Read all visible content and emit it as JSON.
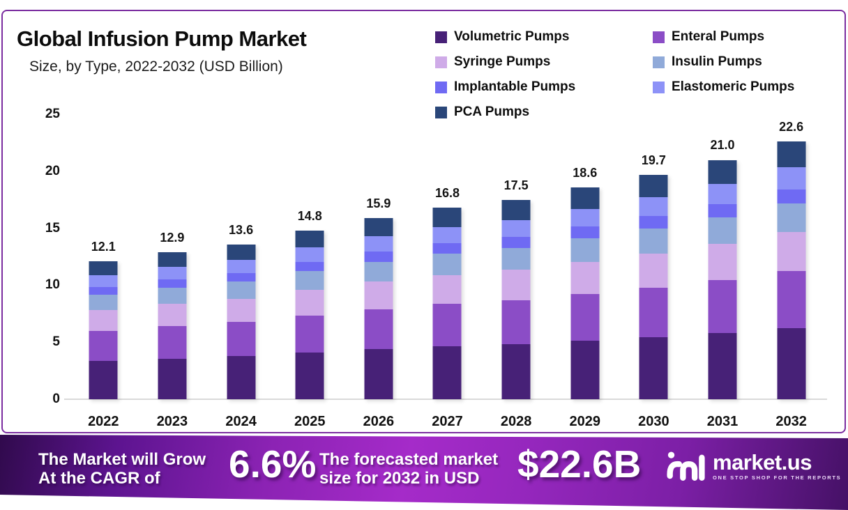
{
  "title": "Global Infusion Pump Market",
  "subtitle": "Size, by Type, 2022-2032 (USD Billion)",
  "legend": [
    {
      "label": "Volumetric Pumps",
      "color": "#472177"
    },
    {
      "label": "Enteral Pumps",
      "color": "#8b4dc6"
    },
    {
      "label": "Syringe Pumps",
      "color": "#cfabe8"
    },
    {
      "label": "Insulin Pumps",
      "color": "#90aad9"
    },
    {
      "label": "Implantable Pumps",
      "color": "#6f6af3"
    },
    {
      "label": "Elastomeric Pumps",
      "color": "#8d92f7"
    },
    {
      "label": "PCA Pumps",
      "color": "#2a4679"
    }
  ],
  "chart_data": {
    "type": "bar",
    "stacked": true,
    "title": "Global Infusion Pump Market Size, by Type, 2022-2032 (USD Billion)",
    "xlabel": "",
    "ylabel": "USD Billion",
    "ylim": [
      0,
      25
    ],
    "yticks": [
      0,
      5,
      10,
      15,
      20,
      25
    ],
    "grid": false,
    "legend_position": "top-right",
    "categories": [
      "2022",
      "2023",
      "2024",
      "2025",
      "2026",
      "2027",
      "2028",
      "2029",
      "2030",
      "2031",
      "2032"
    ],
    "totals": [
      12.1,
      12.9,
      13.6,
      14.8,
      15.9,
      16.8,
      17.5,
      18.6,
      19.7,
      21.0,
      22.6
    ],
    "totals_display": [
      "12.1",
      "12.9",
      "13.6",
      "14.8",
      "15.9",
      "16.8",
      "17.5",
      "18.6",
      "19.7",
      "21.0",
      "22.6"
    ],
    "series": [
      {
        "name": "Volumetric Pumps",
        "color": "#472177",
        "values": [
          3.35,
          3.57,
          3.77,
          4.1,
          4.4,
          4.65,
          4.85,
          5.15,
          5.46,
          5.82,
          6.26
        ]
      },
      {
        "name": "Enteral Pumps",
        "color": "#8b4dc6",
        "values": [
          2.66,
          2.84,
          2.99,
          3.26,
          3.5,
          3.7,
          3.85,
          4.09,
          4.33,
          4.62,
          4.97
        ]
      },
      {
        "name": "Syringe Pumps",
        "color": "#cfabe8",
        "values": [
          1.84,
          1.96,
          2.07,
          2.25,
          2.42,
          2.55,
          2.66,
          2.83,
          2.99,
          3.19,
          3.44
        ]
      },
      {
        "name": "Insulin Pumps",
        "color": "#90aad9",
        "values": [
          1.33,
          1.42,
          1.5,
          1.63,
          1.75,
          1.85,
          1.93,
          2.05,
          2.17,
          2.31,
          2.49
        ]
      },
      {
        "name": "Implantable Pumps",
        "color": "#6f6af3",
        "values": [
          0.68,
          0.72,
          0.76,
          0.83,
          0.89,
          0.94,
          0.98,
          1.04,
          1.1,
          1.18,
          1.27
        ]
      },
      {
        "name": "Elastomeric Pumps",
        "color": "#8d92f7",
        "values": [
          1.02,
          1.08,
          1.14,
          1.24,
          1.34,
          1.41,
          1.47,
          1.56,
          1.65,
          1.76,
          1.9
        ]
      },
      {
        "name": "PCA Pumps",
        "color": "#2a4679",
        "values": [
          1.22,
          1.3,
          1.37,
          1.49,
          1.61,
          1.7,
          1.77,
          1.88,
          1.99,
          2.12,
          2.28
        ]
      }
    ]
  },
  "banner": {
    "grow_line1": "The Market will Grow",
    "grow_line2": "At the CAGR of",
    "cagr": "6.6%",
    "forecast_line1": "The forecasted market",
    "forecast_line2": "size for 2032 in USD",
    "forecast_value": "$22.6B",
    "brand": "market.us",
    "tagline": "ONE STOP SHOP FOR THE REPORTS"
  },
  "colors": {
    "card_border": "#7b2da0",
    "baseline": "#d9d9d9",
    "banner_left": "#300a4c",
    "banner_mid": "#a52bc9",
    "banner_right": "#451166"
  }
}
